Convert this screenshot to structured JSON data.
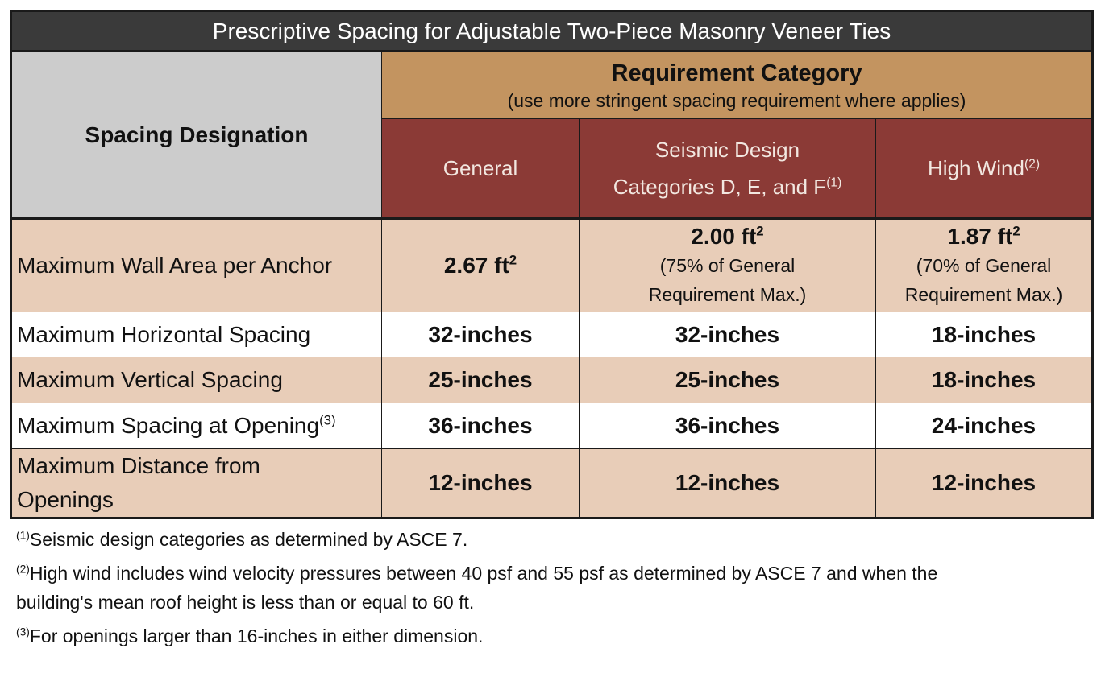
{
  "title": "Prescriptive Spacing for Adjustable Two-Piece Masonry Veneer Ties",
  "header": {
    "spacing_designation": "Spacing Designation",
    "requirement_category": "Requirement Category",
    "requirement_note": "(use more stringent spacing requirement where applies)",
    "col_general": "General",
    "col_seismic_line1": "Seismic Design",
    "col_seismic_line2": "Categories D, E, and F",
    "col_seismic_ref": "(1)",
    "col_wind": "High Wind",
    "col_wind_ref": "(2)"
  },
  "rows": [
    {
      "label": "Maximum Wall Area per Anchor",
      "general": "2.67 ft",
      "general_sup": "2",
      "seismic": "2.00 ft",
      "seismic_sup": "2",
      "seismic_note_1": "(75% of General",
      "seismic_note_2": "Requirement Max.)",
      "wind": "1.87 ft",
      "wind_sup": "2",
      "wind_note_1": "(70% of General",
      "wind_note_2": "Requirement Max.)"
    },
    {
      "label": "Maximum Horizontal Spacing",
      "general": "32-inches",
      "seismic": "32-inches",
      "wind": "18-inches"
    },
    {
      "label": "Maximum Vertical Spacing",
      "general": "25-inches",
      "seismic": "25-inches",
      "wind": "18-inches"
    },
    {
      "label": "Maximum Spacing at Opening",
      "label_ref": "(3)",
      "general": "36-inches",
      "seismic": "36-inches",
      "wind": "24-inches"
    },
    {
      "label_line1": "Maximum Distance from",
      "label_line2": "Openings",
      "general": "12-inches",
      "seismic": "12-inches",
      "wind": "12-inches"
    }
  ],
  "notes": [
    {
      "ref": "(1)",
      "text": "Seismic design categories as determined by ASCE 7."
    },
    {
      "ref": "(2)",
      "text_line1": "High wind includes wind velocity pressures between 40 psf and 55 psf as determined by ASCE 7 and when the",
      "text_line2": "building's mean roof height is less than or equal to 60 ft."
    },
    {
      "ref": "(3)",
      "text": "For openings larger than 16-inches in either dimension."
    }
  ],
  "colors": {
    "title_bg": "#3a3a3a",
    "spacing_header_bg": "#cccccc",
    "requirement_bg": "#c39460",
    "column_header_bg": "#8b3a36",
    "tan_row_bg": "#e8cdb8"
  }
}
